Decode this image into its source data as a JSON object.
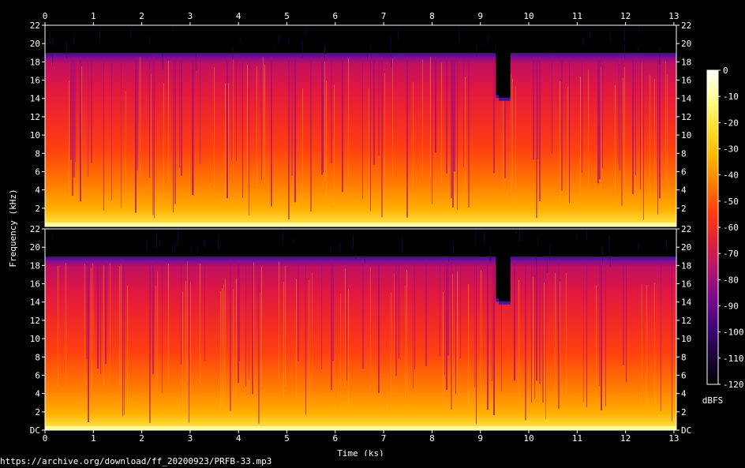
{
  "chart_data": {
    "type": "heatmap",
    "title": "",
    "xlabel": "Time (ks)",
    "ylabel": "Frequency (kHz)",
    "xlim": [
      0,
      13.05
    ],
    "ylim": [
      0,
      22
    ],
    "x_ticks": [
      "0",
      "1",
      "2",
      "3",
      "4",
      "5",
      "6",
      "7",
      "8",
      "9",
      "10",
      "11",
      "12",
      "13"
    ],
    "y_ticks_upper": [
      "2",
      "4",
      "6",
      "8",
      "10",
      "12",
      "14",
      "16",
      "18",
      "20",
      "22"
    ],
    "y_ticks_lower": [
      "DC",
      "2",
      "4",
      "6",
      "8",
      "10",
      "12",
      "14",
      "16",
      "18",
      "20",
      "22"
    ],
    "channels": [
      "upper",
      "lower"
    ],
    "colorbar": {
      "label": "dBFS",
      "range": [
        -120,
        0
      ],
      "ticks": [
        "0",
        "-10",
        "-20",
        "-30",
        "-40",
        "-50",
        "-60",
        "-70",
        "-80",
        "-90",
        "-100",
        "-110",
        "-120"
      ],
      "colors": [
        "#000000",
        "#1a0538",
        "#41067a",
        "#7a0a8a",
        "#b01570",
        "#e0203a",
        "#ff3a10",
        "#ff7a00",
        "#ffb800",
        "#ffe030",
        "#ffff90",
        "#ffffff"
      ]
    },
    "cutoff_khz": 18.8,
    "gaps_ks": [
      {
        "start": 9.32,
        "end": 9.38,
        "cutoff": 14.3
      },
      {
        "start": 9.38,
        "end": 9.62,
        "cutoff": 14.0
      }
    ]
  },
  "footer": {
    "url": "https://archive.org/download/ff_20200923/PRFB-33.mp3"
  }
}
